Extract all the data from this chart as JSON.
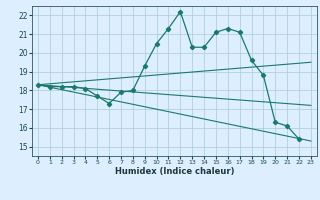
{
  "background_color": "#ddeeff",
  "grid_color": "#aacccc",
  "line_color": "#1a7a6a",
  "xlabel": "Humidex (Indice chaleur)",
  "xlim": [
    -0.5,
    23.5
  ],
  "ylim": [
    14.5,
    22.5
  ],
  "yticks": [
    15,
    16,
    17,
    18,
    19,
    20,
    21,
    22
  ],
  "xticks": [
    0,
    1,
    2,
    3,
    4,
    5,
    6,
    7,
    8,
    9,
    10,
    11,
    12,
    13,
    14,
    15,
    16,
    17,
    18,
    19,
    20,
    21,
    22,
    23
  ],
  "main_series": {
    "x": [
      0,
      1,
      2,
      3,
      4,
      5,
      6,
      7,
      8,
      9,
      10,
      11,
      12,
      13,
      14,
      15,
      16,
      17,
      18,
      19,
      20,
      21,
      22
    ],
    "y": [
      18.3,
      18.2,
      18.2,
      18.2,
      18.1,
      17.7,
      17.3,
      17.9,
      18.0,
      19.3,
      20.5,
      21.3,
      22.2,
      20.3,
      20.3,
      21.1,
      21.3,
      21.1,
      19.6,
      18.8,
      16.3,
      16.1,
      15.4
    ]
  },
  "trend_lines": [
    {
      "x": [
        0,
        23
      ],
      "y": [
        18.3,
        19.5
      ]
    },
    {
      "x": [
        0,
        23
      ],
      "y": [
        18.3,
        17.2
      ]
    },
    {
      "x": [
        0,
        23
      ],
      "y": [
        18.3,
        15.3
      ]
    }
  ]
}
